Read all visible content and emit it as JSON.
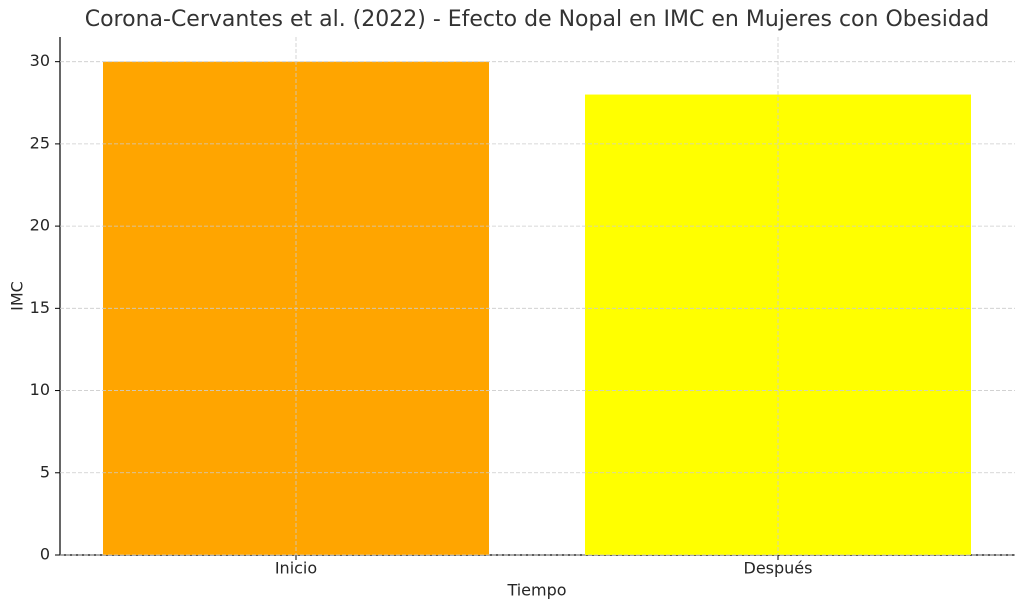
{
  "chart_data": {
    "type": "bar",
    "title": "Corona-Cervantes et al. (2022) - Efecto de Nopal en IMC en Mujeres con Obesidad",
    "x_label": "Tiempo",
    "y_label": "IMC",
    "categories": [
      "Inicio",
      "Después"
    ],
    "values": [
      30,
      28
    ],
    "colors": [
      "#ffa500",
      "#ffff00"
    ],
    "ylim": [
      0,
      31.5
    ],
    "yticks": [
      0,
      5,
      10,
      15,
      20,
      25,
      30
    ],
    "grid": true
  }
}
